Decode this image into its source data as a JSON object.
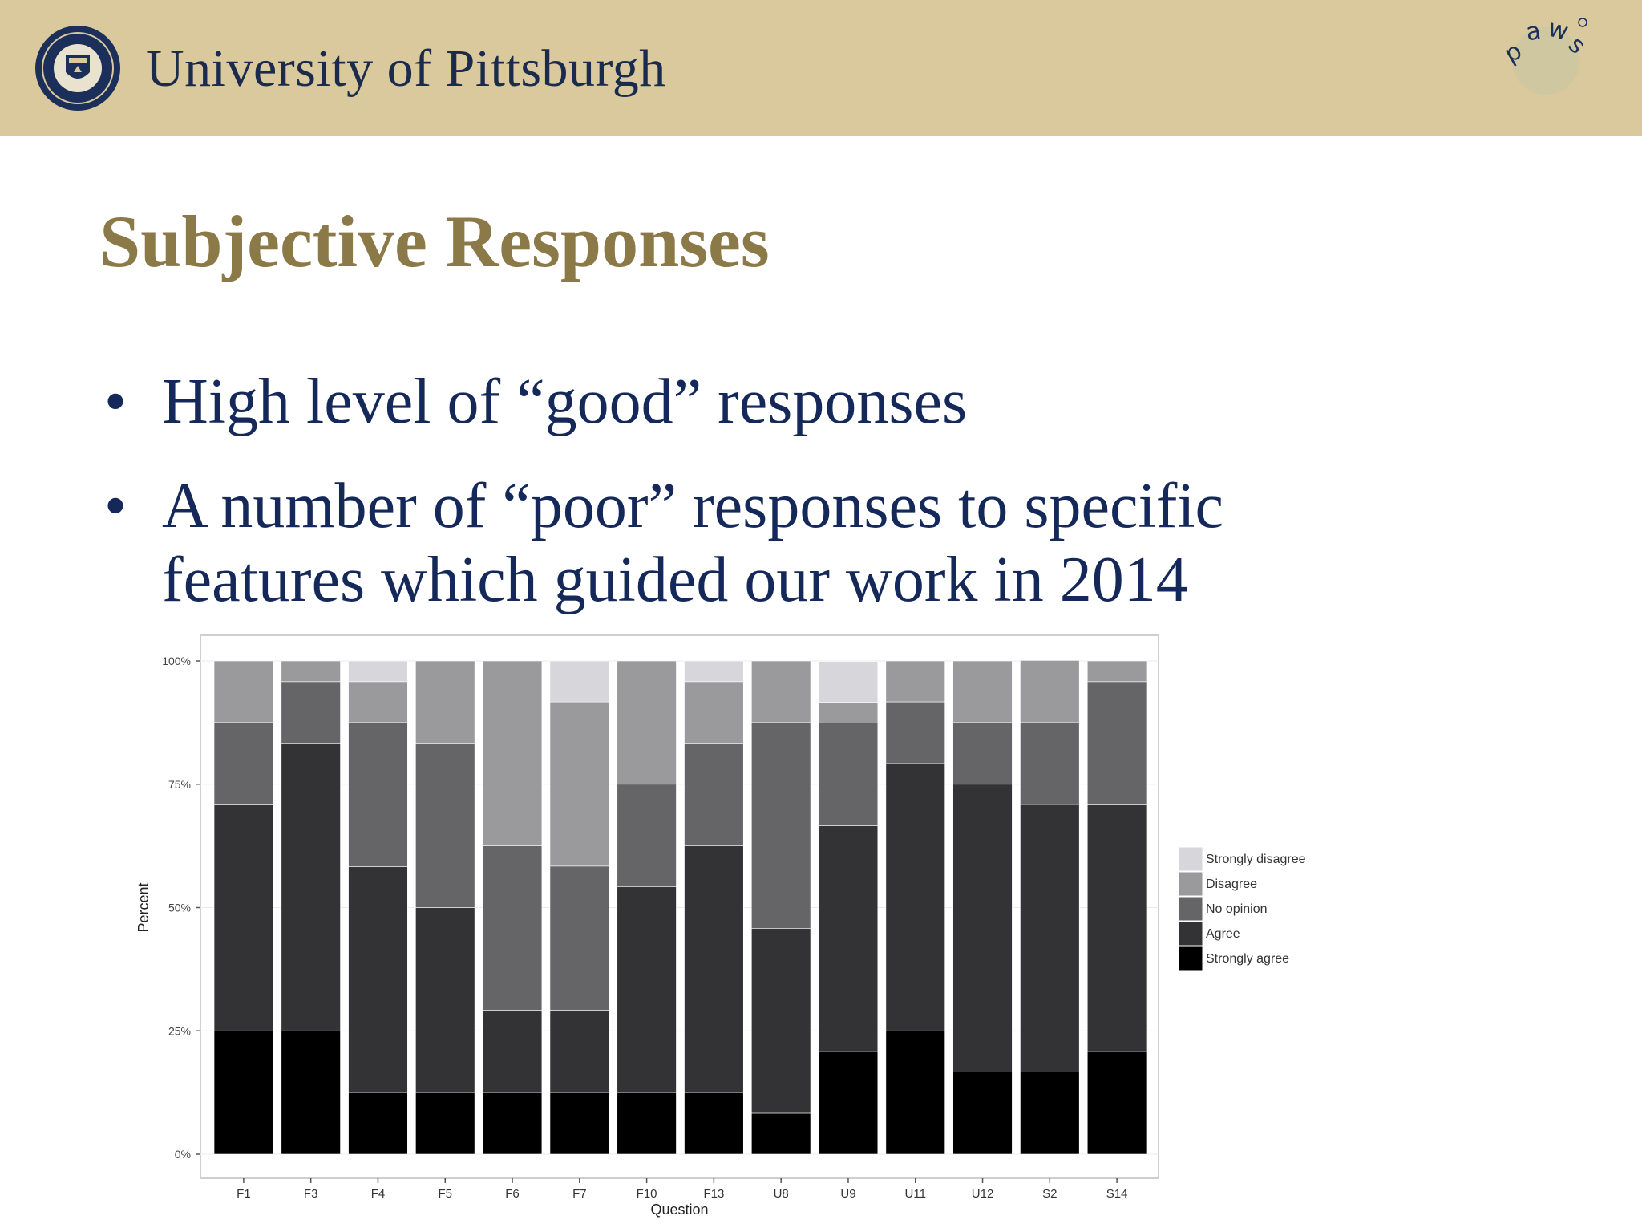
{
  "header": {
    "university_name": "University of Pittsburgh",
    "seal_text": [
      "UNIVERSITY OF",
      "PITTSBURGH"
    ],
    "logo_text": "paws",
    "background_color": "#d9c99d",
    "name_color": "#1b2b4d"
  },
  "slide": {
    "title": "Subjective Responses",
    "title_color": "#8b7a48",
    "bullets": [
      {
        "marker": "•",
        "text": "High level of “good” responses"
      },
      {
        "marker": "•",
        "text": "A number of “poor” responses to specific features which guided our work in 2014"
      }
    ],
    "text_color": "#14285a"
  },
  "chart_data": {
    "type": "bar",
    "stacked": true,
    "xlabel": "Question",
    "ylabel": "Percent",
    "ylim": [
      0,
      100
    ],
    "yticks": [
      "0%",
      "25%",
      "50%",
      "75%",
      "100%"
    ],
    "categories": [
      "F1",
      "F3",
      "F4",
      "F5",
      "F6",
      "F7",
      "F10",
      "F13",
      "U8",
      "U9",
      "U11",
      "U12",
      "S2",
      "S14"
    ],
    "series": [
      {
        "name": "Strongly agree",
        "color": "#000000",
        "values": [
          25,
          25,
          12.5,
          12.5,
          12.5,
          12.5,
          12.5,
          12.5,
          8.3,
          20.8,
          25,
          16.7,
          16.7,
          20.8
        ]
      },
      {
        "name": "Agree",
        "color": "#333335",
        "values": [
          45.8,
          58.3,
          45.8,
          37.5,
          16.7,
          16.7,
          41.7,
          50,
          37.5,
          45.8,
          54.2,
          58.3,
          54.2,
          50
        ]
      },
      {
        "name": "No opinion",
        "color": "#656568",
        "values": [
          16.7,
          12.5,
          29.2,
          33.3,
          33.3,
          29.2,
          20.8,
          20.8,
          41.7,
          20.8,
          12.5,
          12.5,
          16.7,
          25
        ]
      },
      {
        "name": "Disagree",
        "color": "#9a9a9c",
        "values": [
          12.5,
          4.2,
          8.3,
          16.7,
          37.5,
          33.3,
          25,
          12.5,
          12.5,
          4.2,
          8.3,
          12.5,
          12.5,
          4.2
        ]
      },
      {
        "name": "Strongly disagree",
        "color": "#d7d6da",
        "values": [
          0,
          0,
          4.2,
          0,
          0,
          8.3,
          0,
          4.2,
          0,
          8.3,
          0,
          0,
          0,
          0
        ]
      }
    ],
    "legend_position": "right",
    "legend_order": [
      "Strongly disagree",
      "Disagree",
      "No opinion",
      "Agree",
      "Strongly agree"
    ],
    "grid": true
  }
}
